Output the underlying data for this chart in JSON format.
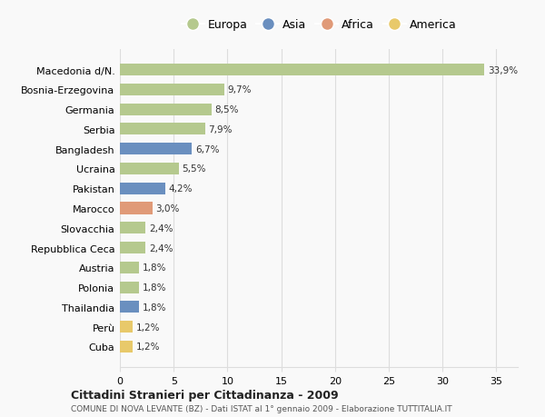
{
  "categories": [
    "Cuba",
    "Perù",
    "Thailandia",
    "Polonia",
    "Austria",
    "Repubblica Ceca",
    "Slovacchia",
    "Marocco",
    "Pakistan",
    "Ucraina",
    "Bangladesh",
    "Serbia",
    "Germania",
    "Bosnia-Erzegovina",
    "Macedonia d/N."
  ],
  "values": [
    1.2,
    1.2,
    1.8,
    1.8,
    1.8,
    2.4,
    2.4,
    3.0,
    4.2,
    5.5,
    6.7,
    7.9,
    8.5,
    9.7,
    33.9
  ],
  "labels": [
    "1,2%",
    "1,2%",
    "1,8%",
    "1,8%",
    "1,8%",
    "2,4%",
    "2,4%",
    "3,0%",
    "4,2%",
    "5,5%",
    "6,7%",
    "7,9%",
    "8,5%",
    "9,7%",
    "33,9%"
  ],
  "continents": [
    "America",
    "America",
    "Asia",
    "Europa",
    "Europa",
    "Europa",
    "Europa",
    "Africa",
    "Asia",
    "Europa",
    "Asia",
    "Europa",
    "Europa",
    "Europa",
    "Europa"
  ],
  "colors": {
    "Europa": "#b5c98e",
    "Asia": "#6a8fbf",
    "Africa": "#e09a78",
    "America": "#e8c96a"
  },
  "legend_order": [
    "Europa",
    "Asia",
    "Africa",
    "America"
  ],
  "title1": "Cittadini Stranieri per Cittadinanza - 2009",
  "title2": "COMUNE DI NOVA LEVANTE (BZ) - Dati ISTAT al 1° gennaio 2009 - Elaborazione TUTTITALIA.IT",
  "xlim": [
    0,
    37
  ],
  "xticks": [
    0,
    5,
    10,
    15,
    20,
    25,
    30,
    35
  ],
  "bar_height": 0.6,
  "background_color": "#f9f9f9",
  "grid_color": "#dddddd"
}
